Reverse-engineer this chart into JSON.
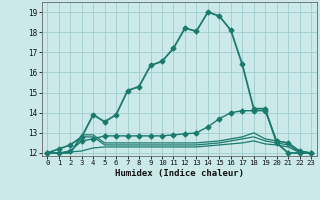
{
  "title": "",
  "xlabel": "Humidex (Indice chaleur)",
  "xlim": [
    -0.5,
    23.5
  ],
  "ylim": [
    11.85,
    19.5
  ],
  "yticks": [
    12,
    13,
    14,
    15,
    16,
    17,
    18,
    19
  ],
  "xticks": [
    0,
    1,
    2,
    3,
    4,
    5,
    6,
    7,
    8,
    9,
    10,
    11,
    12,
    13,
    14,
    15,
    16,
    17,
    18,
    19,
    20,
    21,
    22,
    23
  ],
  "bg_color": "#cce9e9",
  "grid_color": "#a0cccc",
  "line_color": "#1a7a6e",
  "lines": [
    {
      "x": [
        0,
        1,
        2,
        3,
        4,
        5,
        6,
        7,
        8,
        9,
        10,
        11,
        12,
        13,
        14,
        15,
        16,
        17,
        18,
        19,
        20,
        21,
        22,
        23
      ],
      "y": [
        12.0,
        12.2,
        12.4,
        12.8,
        13.9,
        13.55,
        13.9,
        15.1,
        15.3,
        16.35,
        16.55,
        17.2,
        18.2,
        18.05,
        19.0,
        18.8,
        18.1,
        16.4,
        14.2,
        14.2,
        12.5,
        12.0,
        12.0,
        12.0
      ],
      "marker": "D",
      "markersize": 2.5,
      "linewidth": 1.3
    },
    {
      "x": [
        0,
        1,
        2,
        3,
        4,
        5,
        6,
        7,
        8,
        9,
        10,
        11,
        12,
        13,
        14,
        15,
        16,
        17,
        18,
        19,
        20,
        21,
        22,
        23
      ],
      "y": [
        12.0,
        12.0,
        12.0,
        12.9,
        12.9,
        12.5,
        12.5,
        12.5,
        12.5,
        12.5,
        12.5,
        12.5,
        12.5,
        12.5,
        12.55,
        12.6,
        12.7,
        12.8,
        13.0,
        12.7,
        12.6,
        12.5,
        12.1,
        12.0
      ],
      "marker": null,
      "markersize": 0,
      "linewidth": 0.9
    },
    {
      "x": [
        0,
        1,
        2,
        3,
        4,
        5,
        6,
        7,
        8,
        9,
        10,
        11,
        12,
        13,
        14,
        15,
        16,
        17,
        18,
        19,
        20,
        21,
        22,
        23
      ],
      "y": [
        12.0,
        12.0,
        12.0,
        12.8,
        12.8,
        12.4,
        12.4,
        12.4,
        12.4,
        12.4,
        12.4,
        12.4,
        12.4,
        12.4,
        12.45,
        12.5,
        12.6,
        12.7,
        12.8,
        12.6,
        12.5,
        12.4,
        12.05,
        12.0
      ],
      "marker": null,
      "markersize": 0,
      "linewidth": 0.9
    },
    {
      "x": [
        0,
        1,
        2,
        3,
        4,
        5,
        6,
        7,
        8,
        9,
        10,
        11,
        12,
        13,
        14,
        15,
        16,
        17,
        18,
        19,
        20,
        21,
        22,
        23
      ],
      "y": [
        12.0,
        12.0,
        12.05,
        12.1,
        12.25,
        12.3,
        12.3,
        12.3,
        12.3,
        12.3,
        12.3,
        12.3,
        12.3,
        12.3,
        12.35,
        12.4,
        12.45,
        12.5,
        12.6,
        12.45,
        12.4,
        12.3,
        12.02,
        12.0
      ],
      "marker": null,
      "markersize": 0,
      "linewidth": 0.9
    },
    {
      "x": [
        0,
        1,
        2,
        3,
        4,
        5,
        6,
        7,
        8,
        9,
        10,
        11,
        12,
        13,
        14,
        15,
        16,
        17,
        18,
        19,
        20,
        21,
        22,
        23
      ],
      "y": [
        12.0,
        12.0,
        12.1,
        12.6,
        12.7,
        12.85,
        12.85,
        12.85,
        12.85,
        12.85,
        12.85,
        12.9,
        12.95,
        13.0,
        13.3,
        13.7,
        14.0,
        14.1,
        14.1,
        14.1,
        12.6,
        12.5,
        12.1,
        12.0
      ],
      "marker": "D",
      "markersize": 2.5,
      "linewidth": 1.0
    }
  ]
}
